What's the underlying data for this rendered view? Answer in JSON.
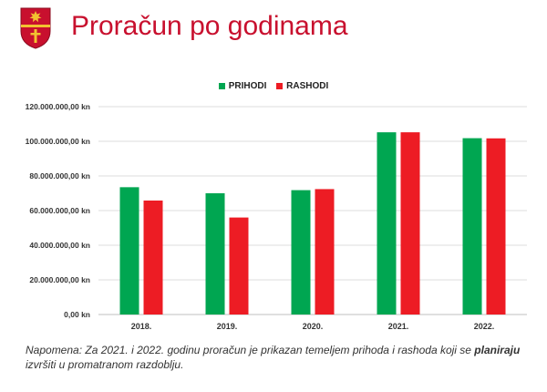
{
  "header": {
    "title": "Proračun po godinama"
  },
  "colors": {
    "prihodi": "#00a651",
    "rashodi": "#ed1c24",
    "title": "#c8102e",
    "crest": "#c8102e"
  },
  "chart_data": {
    "type": "bar",
    "title": "",
    "xlabel": "",
    "ylabel": "",
    "categories": [
      "2018.",
      "2019.",
      "2020.",
      "2021.",
      "2022."
    ],
    "series": [
      {
        "name": "PRIHODI",
        "color": "#00a651",
        "values": [
          73500000,
          70000000,
          71800000,
          105200000,
          101800000
        ]
      },
      {
        "name": "RASHODI",
        "color": "#ed1c24",
        "values": [
          65800000,
          56000000,
          72400000,
          105200000,
          101700000
        ]
      }
    ],
    "ylim": [
      0,
      120000000
    ],
    "yticks": [
      0,
      20000000,
      40000000,
      60000000,
      80000000,
      100000000,
      120000000
    ],
    "ytick_labels": [
      "0,00 kn",
      "20.000.000,00 kn",
      "40.000.000,00 kn",
      "60.000.000,00 kn",
      "80.000.000,00 kn",
      "100.000.000,00 kn",
      "120.000.000,00 kn"
    ],
    "grid": true,
    "legend": "top"
  },
  "note": {
    "before": "Napomena: Za 2021. i 2022. godinu proračun je prikazan temeljem prihoda i rashoda koji se ",
    "bold": "planiraju",
    "after": " izvršiti u promatranom razdoblju."
  }
}
